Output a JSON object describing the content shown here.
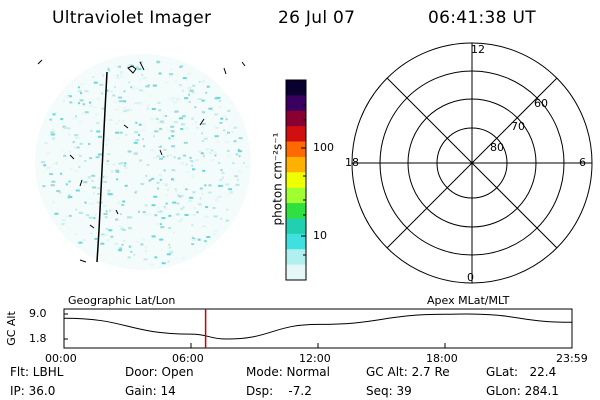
{
  "header": {
    "title": "Ultraviolet Imager",
    "date": "26 Jul 07",
    "time": "06:41:38 UT"
  },
  "colorbar": {
    "unit_label": "photon cm⁻²s⁻¹",
    "ticks": [
      "100",
      "10"
    ],
    "colors": [
      "#0a0030",
      "#3a0060",
      "#8a0030",
      "#d01010",
      "#ff6a00",
      "#ffb000",
      "#f0ff00",
      "#a0ff30",
      "#30e040",
      "#20d0b0",
      "#40e0e0",
      "#b0f0f0",
      "#e6f7f7"
    ]
  },
  "polar": {
    "mlt_labels": [
      "12",
      "18",
      "6",
      "0"
    ],
    "mlat_labels": [
      "60",
      "70",
      "80"
    ]
  },
  "timeline": {
    "title_left": "Geographic Lat/Lon",
    "title_right": "Apex MLat/MLT",
    "y_axis_label": "GC Alt",
    "y_ticks": [
      "9.0",
      "1.8"
    ],
    "x_ticks": [
      "00:00",
      "06:00",
      "12:00",
      "18:00",
      "23:59"
    ],
    "current_marker_color": "#cc0000"
  },
  "chart_data": {
    "type": "line",
    "xlabel": "",
    "ylabel": "GC Alt",
    "ylim": [
      1.8,
      9.0
    ],
    "x": [
      "00:00",
      "06:00",
      "07:40",
      "12:00",
      "18:00",
      "19:00",
      "23:59"
    ],
    "values": [
      7.8,
      3.2,
      1.8,
      6.0,
      8.9,
      9.0,
      6.6
    ],
    "marker_time": "06:41"
  },
  "status": {
    "flt": "Flt: LBHL",
    "ip": "IP: 36.0",
    "door": "Door: Open",
    "gain": "Gain: 14",
    "mode": "Mode: Normal",
    "dsp": "Dsp:    -7.2",
    "gc_alt": "GC Alt: 2.7 Re",
    "seq": "Seq: 39",
    "glat": "GLat:   22.4",
    "glon": "GLon: 284.1"
  }
}
